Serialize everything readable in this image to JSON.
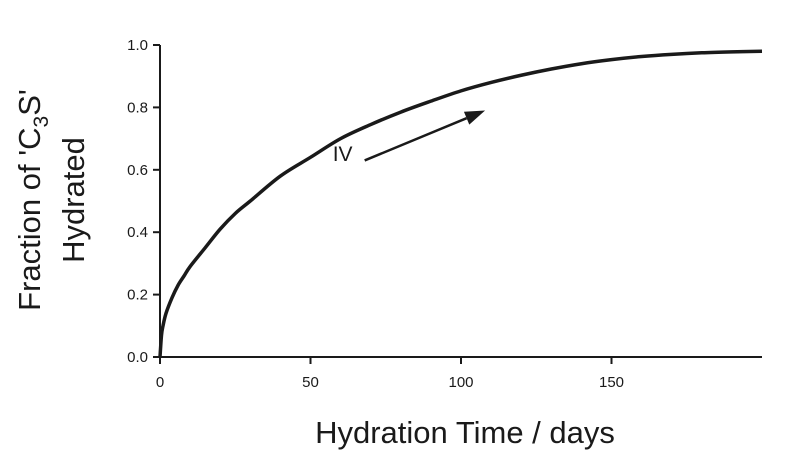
{
  "chart_data": {
    "type": "line",
    "xlabel": "Hydration Time / days",
    "ylabel": {
      "line1_prefix": "Fraction of 'C",
      "line1_sub": "3",
      "line1_suffix": "S'",
      "line2": "Hydrated"
    },
    "xlim": [
      0,
      200
    ],
    "ylim": [
      0,
      1.0
    ],
    "x_ticks": [
      0,
      50,
      100,
      150
    ],
    "x_tick_labels": [
      "0",
      "50",
      "100",
      "150"
    ],
    "y_ticks": [
      0,
      0.2,
      0.4,
      0.6,
      0.8,
      1.0
    ],
    "y_tick_labels": [
      "0.0",
      "0.2",
      "0.4",
      "0.6",
      "0.8",
      "1.0"
    ],
    "grid": false,
    "series": [
      {
        "x": [
          0,
          0.5,
          1,
          2,
          4,
          6,
          8,
          10,
          15,
          20,
          25,
          30,
          40,
          50,
          60,
          70,
          80,
          90,
          100,
          110,
          120,
          130,
          140,
          150,
          160,
          170,
          180,
          190,
          200
        ],
        "y": [
          0,
          0.07,
          0.1,
          0.14,
          0.19,
          0.23,
          0.26,
          0.29,
          0.35,
          0.41,
          0.46,
          0.5,
          0.58,
          0.64,
          0.7,
          0.745,
          0.785,
          0.82,
          0.853,
          0.88,
          0.903,
          0.923,
          0.94,
          0.953,
          0.963,
          0.97,
          0.975,
          0.978,
          0.98
        ],
        "color": "#1a1a1a"
      }
    ],
    "annotations": [
      {
        "text": "IV",
        "x": 62,
        "y": 0.59,
        "arrow_from": [
          68,
          0.63
        ],
        "arrow_to": [
          108,
          0.79
        ]
      }
    ]
  }
}
